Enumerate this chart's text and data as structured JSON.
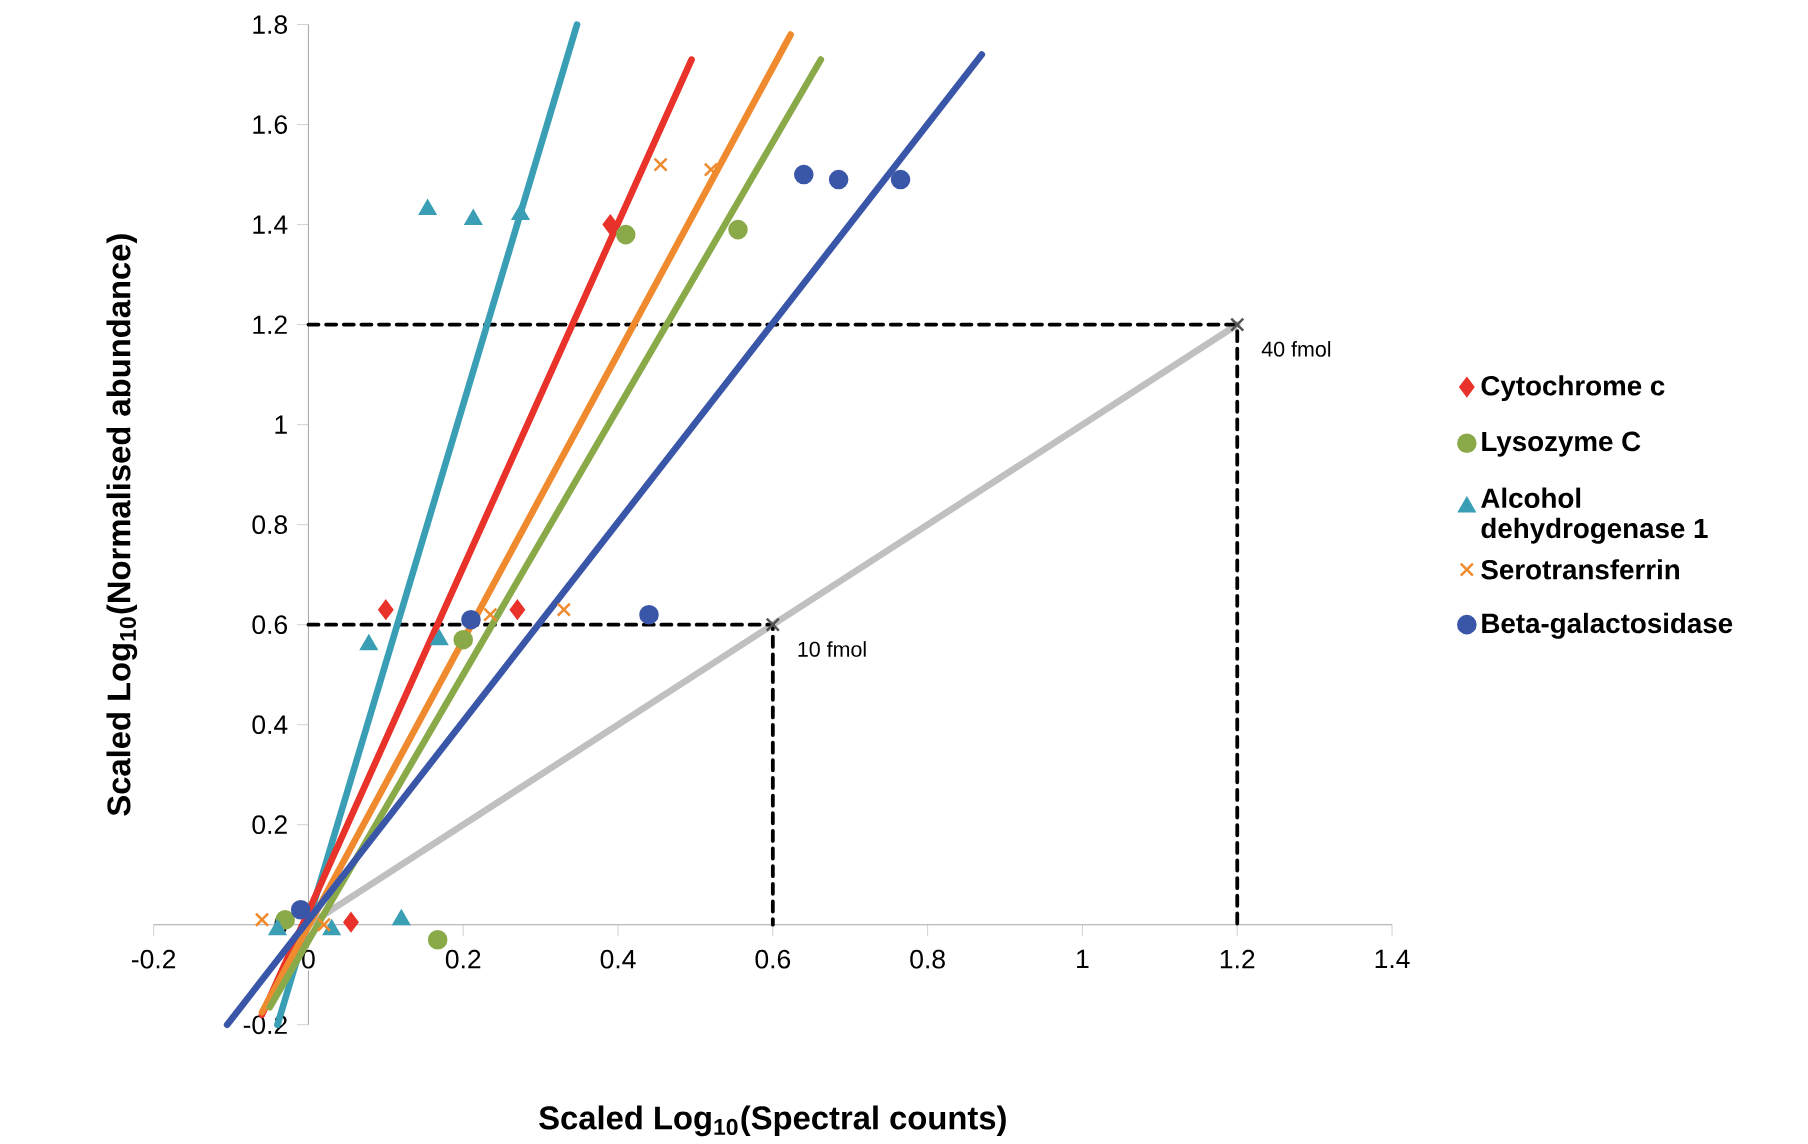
{
  "chart_data": {
    "type": "scatter",
    "xlabel": "Scaled Log$_{10}$(Spectral counts)",
    "ylabel": "Scaled Log$_{10}$(Normalised abundance)",
    "xlim": [
      -0.2,
      1.4
    ],
    "ylim": [
      -0.2,
      1.8
    ],
    "xticks": [
      -0.2,
      0,
      0.2,
      0.4,
      0.6,
      0.8,
      1,
      1.2,
      1.4
    ],
    "yticks": [
      -0.2,
      0,
      0.2,
      0.4,
      0.6,
      0.8,
      1,
      1.2,
      1.4,
      1.6,
      1.8
    ],
    "legend": "right",
    "series": [
      {
        "name": "Cytochrome c",
        "color": "#e8322a",
        "marker": "diamond",
        "x": [
          0.39,
          0.1,
          0.27,
          0.055
        ],
        "values": [
          1.4,
          0.63,
          0.63,
          0.005
        ]
      },
      {
        "name": "Lysozyme C",
        "color": "#8aaa4a",
        "marker": "circle",
        "x": [
          0.41,
          0.555,
          0.2,
          -0.03,
          0.167
        ],
        "values": [
          1.38,
          1.39,
          0.57,
          0.01,
          -0.03
        ]
      },
      {
        "name": "Alcohol dehydrogenase 1",
        "color": "#3a9fb5",
        "marker": "triangle",
        "x": [
          0.154,
          0.213,
          0.274,
          0.078,
          0.169,
          0.12,
          0.03,
          -0.04
        ],
        "values": [
          1.43,
          1.41,
          1.42,
          0.56,
          0.57,
          0.01,
          -0.01,
          -0.01
        ]
      },
      {
        "name": "Serotransferrin",
        "color": "#f08a2e",
        "marker": "cross",
        "x": [
          0.455,
          0.52,
          0.33,
          0.235,
          -0.06,
          0.02
        ],
        "values": [
          1.52,
          1.51,
          0.63,
          0.62,
          0.01,
          0.0
        ]
      },
      {
        "name": "Beta-galactosidase",
        "color": "#3a56a8",
        "marker": "circle",
        "x": [
          0.64,
          0.685,
          0.765,
          0.44,
          0.21,
          -0.01
        ],
        "values": [
          1.5,
          1.49,
          1.49,
          0.62,
          0.61,
          0.03
        ]
      },
      {
        "type": "line",
        "color": "#c0c0c0",
        "x": [
          0,
          1.2
        ],
        "values": [
          0,
          1.2
        ]
      },
      {
        "type": "line",
        "color": "#000000",
        "line_style": "dashed",
        "x": [
          0,
          1.2,
          1.2
        ],
        "values": [
          1.2,
          1.2,
          0
        ]
      },
      {
        "type": "line",
        "color": "#000000",
        "line_style": "dashed",
        "x": [
          0,
          0.6,
          0.6
        ],
        "values": [
          0.6,
          0.6,
          0
        ]
      },
      {
        "type": "line",
        "color": "#3a9fb5",
        "x": [
          -0.04,
          0.347
        ],
        "values": [
          -0.2,
          1.8
        ]
      },
      {
        "type": "line",
        "color": "#e8322a",
        "x": [
          -0.06,
          0.495
        ],
        "values": [
          -0.18,
          1.73
        ]
      },
      {
        "type": "line",
        "color": "#f08a2e",
        "x": [
          -0.06,
          0.623
        ],
        "values": [
          -0.175,
          1.78
        ]
      },
      {
        "type": "line",
        "color": "#8aaa4a",
        "x": [
          -0.05,
          0.662
        ],
        "values": [
          -0.165,
          1.73
        ]
      },
      {
        "type": "line",
        "color": "#3a56a8",
        "x": [
          -0.105,
          0.87
        ],
        "values": [
          -0.2,
          1.74
        ]
      },
      {
        "color": "#555555",
        "marker": "cross",
        "x": [
          0.6,
          1.2
        ],
        "values": [
          0.6,
          1.2
        ]
      }
    ],
    "annotations": [
      {
        "text": "10 fmol",
        "x": 0.6,
        "y": 0.6
      },
      {
        "text": "40 fmol",
        "x": 1.2,
        "y": 1.2
      }
    ]
  }
}
